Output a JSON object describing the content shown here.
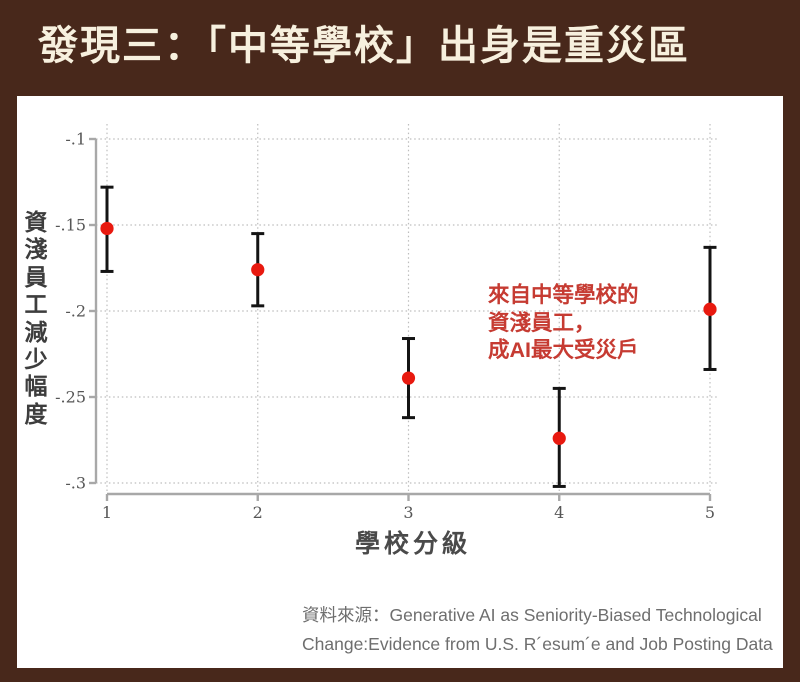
{
  "title": "發現三：「中等學校」出身是重災區",
  "chart_data": {
    "type": "scatter",
    "title": "",
    "xlabel": "學校分級",
    "ylabel": "資淺員工減少幅度",
    "x": [
      1,
      2,
      3,
      4,
      5
    ],
    "y": [
      -0.152,
      -0.176,
      -0.239,
      -0.274,
      -0.199
    ],
    "ci_low": [
      -0.177,
      -0.197,
      -0.262,
      -0.302,
      -0.234
    ],
    "ci_high": [
      -0.128,
      -0.155,
      -0.216,
      -0.245,
      -0.163
    ],
    "xticks": [
      "1",
      "2",
      "3",
      "4",
      "5"
    ],
    "yticks": [
      "-.1",
      "-.15",
      "-.2",
      "-.25",
      "-.3"
    ],
    "ytick_values": [
      -0.1,
      -0.15,
      -0.2,
      -0.25,
      -0.3
    ],
    "xlim": [
      1,
      5
    ],
    "ylim": [
      -0.31,
      -0.095
    ],
    "grid": "dotted",
    "legend": "none",
    "marker_color": "#e8190f",
    "error_bar_color": "#141414"
  },
  "annotation": {
    "lines": [
      "來自中等學校的",
      "資淺員工，",
      "成AI最大受災戶"
    ],
    "color": "#c63b32"
  },
  "source": {
    "lines": [
      "資料來源：Generative AI as Seniority-Biased Technological",
      "Change:Evidence from U.S. R´esum´e and Job Posting Data"
    ]
  },
  "colors": {
    "background": "#48281b",
    "card": "#ffffff",
    "title_text": "#f7f0de",
    "marker_red": "#e8190f",
    "annotation_red": "#c63b32",
    "axis_gray": "#a8a8a8",
    "grid_gray": "#bdbdbd",
    "tick_text": "#565656",
    "source_text": "#6e6e6e"
  }
}
